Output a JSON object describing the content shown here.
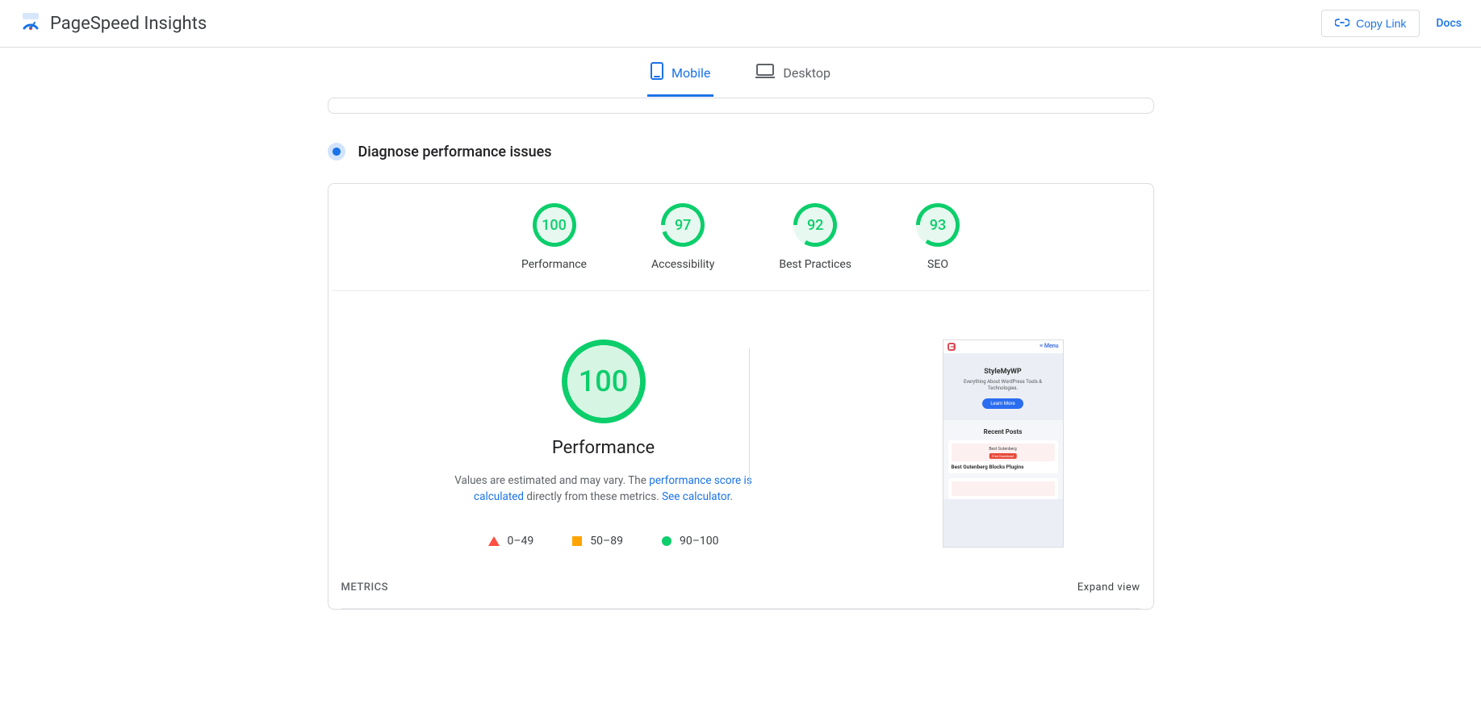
{
  "header": {
    "app_title": "PageSpeed Insights",
    "copy_link_label": "Copy Link",
    "docs_label": "Docs"
  },
  "tabs": {
    "mobile": "Mobile",
    "desktop": "Desktop",
    "active": "mobile"
  },
  "section": {
    "title": "Diagnose performance issues"
  },
  "gauges": [
    {
      "score": 100,
      "label": "Performance",
      "color": "#0cce6b",
      "fill": "#e6f8ef",
      "gap_start": -1,
      "gap_end": -1
    },
    {
      "score": 97,
      "label": "Accessibility",
      "color": "#0cce6b",
      "fill": "#e6f8ef",
      "gap_start": 340,
      "gap_end": 360
    },
    {
      "score": 92,
      "label": "Best Practices",
      "color": "#0cce6b",
      "fill": "#e6f8ef",
      "gap_start": 300,
      "gap_end": 360
    },
    {
      "score": 93,
      "label": "SEO",
      "color": "#0cce6b",
      "fill": "#e6f8ef",
      "gap_start": 305,
      "gap_end": 360
    }
  ],
  "performance": {
    "big_score": 100,
    "ring_color": "#0cce6b",
    "ring_fill": "#d6f5e3",
    "title": "Performance",
    "desc_prefix": "Values are estimated and may vary. The ",
    "desc_link1": "performance score is calculated",
    "desc_middle": " directly from these metrics. ",
    "desc_link2": "See calculator",
    "desc_suffix": "."
  },
  "legend": {
    "poor": "0–49",
    "mid": "50–89",
    "good": "90–100",
    "poor_color": "#ff4e42",
    "mid_color": "#ffa400",
    "good_color": "#0cce6b"
  },
  "preview": {
    "menu_label": "≡ Menu",
    "hero_title": "StyleMyWP",
    "hero_sub": "Everything About WordPress Tools & Technologies.",
    "hero_btn": "Learn More",
    "recent_heading": "Recent Posts",
    "post_title": "Best Gutenberg Blocks Plugins"
  },
  "metrics": {
    "label": "METRICS",
    "expand": "Expand view"
  }
}
